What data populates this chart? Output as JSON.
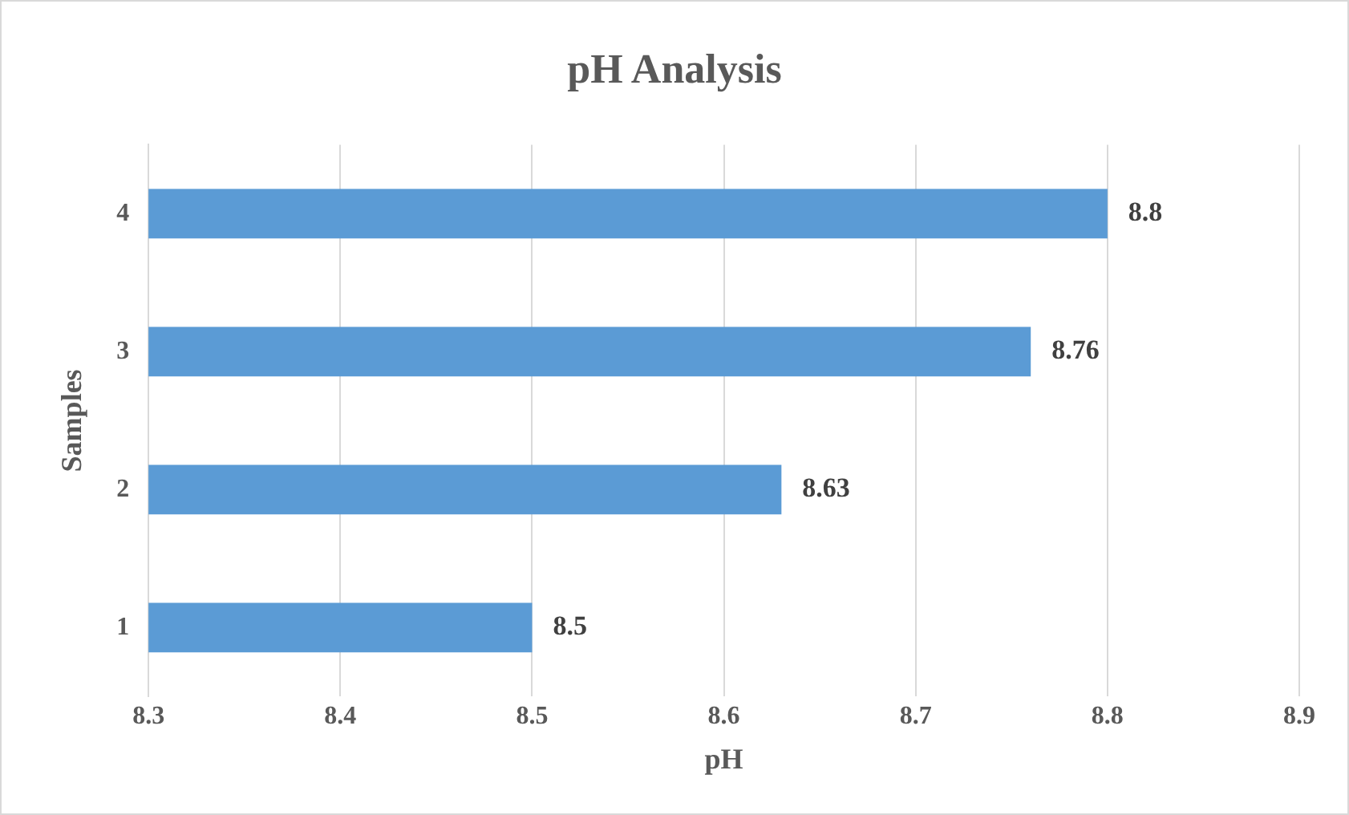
{
  "chart_data": {
    "type": "bar",
    "orientation": "horizontal",
    "title": "pH Analysis",
    "xlabel": "pH",
    "ylabel": "Samples",
    "categories": [
      "4",
      "3",
      "2",
      "1"
    ],
    "values": [
      8.8,
      8.76,
      8.63,
      8.5
    ],
    "color": "#5b9bd5",
    "xlim": [
      8.3,
      8.9
    ],
    "xticks": [
      8.3,
      8.4,
      8.5,
      8.6,
      8.7,
      8.8,
      8.9
    ],
    "grid": "x",
    "data_labels": true,
    "legend": false
  }
}
